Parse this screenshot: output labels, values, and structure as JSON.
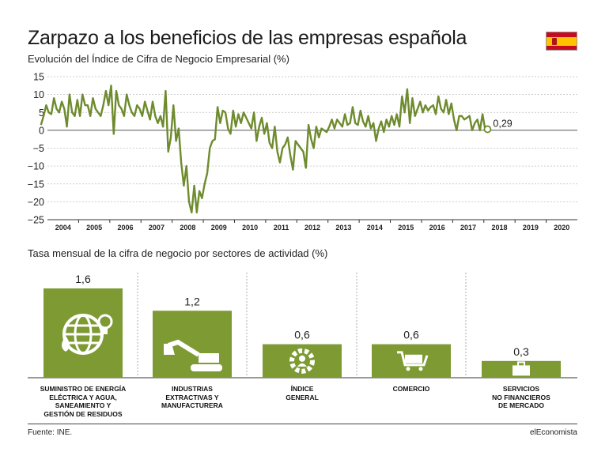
{
  "header": {
    "title": "Zarpazo a los beneficios de las empresas española",
    "subtitle": "Evolución del Índice de Cifra de Negocio Empresarial (%)",
    "flag_icon": "spain-flag-icon"
  },
  "colors": {
    "green": "#6e8b2d",
    "bar_green": "#7d9a33",
    "grid": "#bdbdbd"
  },
  "chart_data": [
    {
      "type": "line",
      "title": "Evolución del Índice de Cifra de Negocio Empresarial (%)",
      "ylim": [
        -25,
        15
      ],
      "yticks": [
        15,
        10,
        5,
        0,
        -5,
        -10,
        -15,
        -20,
        -25
      ],
      "xticks": [
        "2004",
        "2005",
        "2006",
        "2007",
        "2008",
        "2009",
        "2010",
        "2011",
        "2012",
        "2013",
        "2014",
        "2015",
        "2016",
        "2017",
        "2018",
        "2019",
        "2020"
      ],
      "grid": true,
      "last_value_label": "0,29",
      "series": [
        {
          "x_start": "2003-10",
          "frequency": "monthly",
          "values": [
            1.5,
            4,
            7,
            5,
            4.5,
            9,
            6,
            5,
            8,
            6,
            1,
            10,
            5,
            4,
            8.5,
            4,
            10,
            7,
            7,
            4,
            9,
            6,
            5,
            4,
            7,
            11,
            7,
            12.5,
            -1,
            11,
            7,
            6,
            4,
            10,
            7,
            5,
            4,
            7,
            6,
            4,
            8,
            5.5,
            3,
            8,
            4,
            2,
            4,
            1,
            11,
            -6,
            -2,
            7,
            -3,
            0.5,
            -9,
            -15.5,
            -10,
            -20,
            -23,
            -15.5,
            -23,
            -17,
            -19,
            -15,
            -12,
            -5,
            -3,
            -2.5,
            6.5,
            2,
            5.5,
            5,
            0.5,
            -1,
            5.5,
            1,
            4.5,
            2,
            5,
            3.5,
            2,
            0.5,
            5,
            -3,
            1,
            3.5,
            -1,
            2,
            -3.5,
            -5,
            1,
            -6,
            -9,
            -5,
            -4,
            -2,
            -7,
            -11,
            -3,
            -4,
            -5,
            -6,
            -10.5,
            1.5,
            -2.5,
            -5,
            1,
            -2,
            0.5,
            0,
            -0.5,
            1,
            3,
            0.5,
            3,
            2,
            1,
            4.5,
            1.5,
            2,
            6.5,
            2,
            1.5,
            5.5,
            2.5,
            1,
            4,
            0.5,
            2,
            -3,
            0.5,
            2.5,
            -0.5,
            3,
            1,
            4,
            1.5,
            4.5,
            1,
            9.5,
            5,
            11.5,
            2,
            9,
            4,
            6,
            8,
            5,
            7,
            5.5,
            6.5,
            7,
            4.5,
            9.5,
            6,
            5,
            8.5,
            4.5,
            7.5,
            3,
            0,
            4,
            4,
            3,
            3.5,
            4,
            0,
            2,
            3,
            0,
            4.5,
            0.29
          ]
        }
      ]
    },
    {
      "type": "bar",
      "title": "Tasa mensual de la cifra de negocio por sectores de actividad (%)",
      "categories": [
        [
          "SUMINISTRO DE ENERGÍA",
          "ELÉCTRICA Y AGUA,",
          "SANEAMIENTO Y",
          "GESTIÓN DE RESIDUOS"
        ],
        [
          "INDUSTRIAS",
          "EXTRACTIVAS Y",
          "MANUFACTURERA"
        ],
        [
          "ÍNDICE",
          "GENERAL"
        ],
        [
          "COMERCIO"
        ],
        [
          "SERVICIOS",
          "NO FINANCIEROS",
          "DE MERCADO"
        ]
      ],
      "values": [
        1.6,
        1.2,
        0.6,
        0.6,
        0.3
      ],
      "value_labels": [
        "1,6",
        "1,2",
        "0,6",
        "0,6",
        "0,3"
      ],
      "icons": [
        "energy-globe-icon",
        "excavator-icon",
        "gear-person-icon",
        "shopping-cart-icon",
        "briefcase-icon"
      ]
    }
  ],
  "footer": {
    "source": "Fuente: INE.",
    "brand": "elEconomista"
  }
}
